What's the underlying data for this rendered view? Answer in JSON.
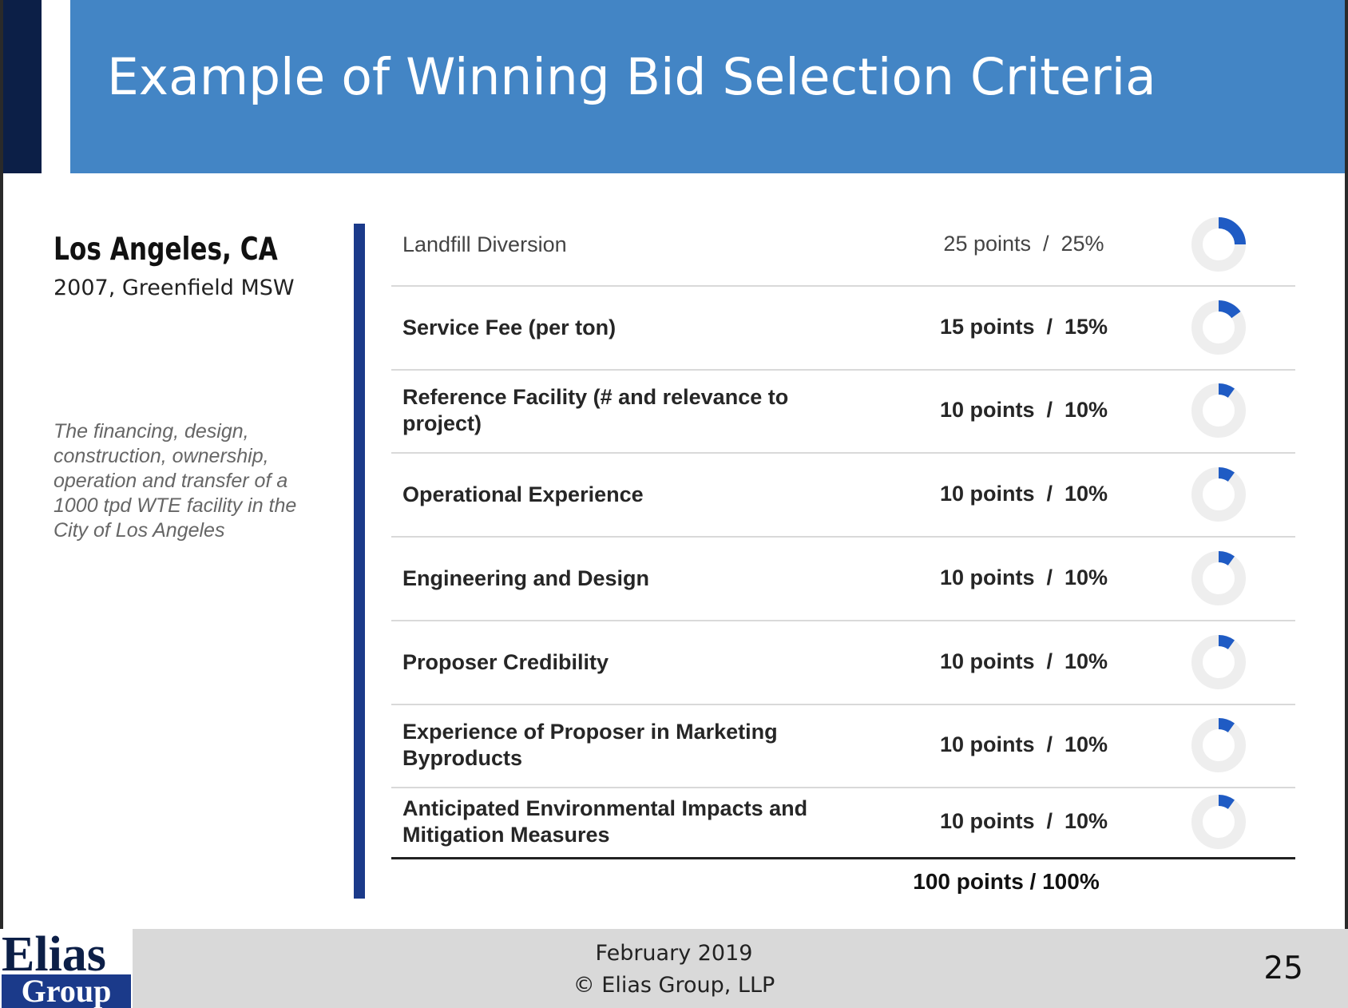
{
  "slide": {
    "title": "Example of Winning Bid Selection Criteria",
    "page_number": "25"
  },
  "project": {
    "city": "Los Angeles, CA",
    "subtitle": "2007, Greenfield MSW",
    "description": "The financing, design, construction, ownership, operation and transfer of a 1000 tpd WTE facility in the City of Los Angeles"
  },
  "criteria": [
    {
      "label": "Landfill Diversion",
      "points": "25 points  /  25%",
      "share": 0.25,
      "emphasis": "light"
    },
    {
      "label": "Service Fee (per ton)",
      "points": "15 points  /  15%",
      "share": 0.15,
      "emphasis": "bold"
    },
    {
      "label": "Reference Facility (# and relevance to project)",
      "points": "10 points  /  10%",
      "share": 0.1,
      "emphasis": "bold"
    },
    {
      "label": "Operational Experience",
      "points": "10 points  /  10%",
      "share": 0.1,
      "emphasis": "bold"
    },
    {
      "label": "Engineering and Design",
      "points": "10 points  /  10%",
      "share": 0.1,
      "emphasis": "bold"
    },
    {
      "label": "Proposer Credibility",
      "points": "10 points  /  10%",
      "share": 0.1,
      "emphasis": "bold"
    },
    {
      "label": "Experience of Proposer in Marketing Byproducts",
      "points": "10 points  /  10%",
      "share": 0.1,
      "emphasis": "bold"
    },
    {
      "label": "Anticipated Environmental Impacts and Mitigation Measures",
      "points": "10 points  /  10%",
      "share": 0.1,
      "emphasis": "bold"
    }
  ],
  "total": "100 points  /  100%",
  "footer": {
    "date": "February 2019",
    "copyright": "© Elias Group, LLP"
  },
  "logo": {
    "line1": "Elias",
    "line2": "Group"
  },
  "colors": {
    "header": "#4385c5",
    "navy": "#0c1f47",
    "accent_bar": "#1b3a8a",
    "donut_fill": "#1f5bc4",
    "donut_track": "#eeeeee",
    "footer": "#d9d9d9"
  },
  "icons": {
    "share_indicator": "donut-progress-icon"
  }
}
